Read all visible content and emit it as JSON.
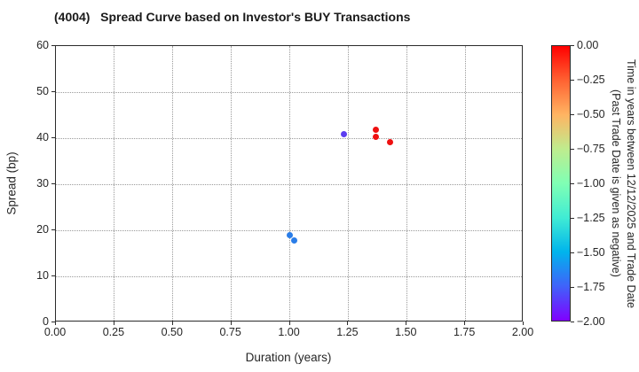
{
  "chart_data": {
    "type": "scatter",
    "title": "(4004)   Spread Curve based on Investor's BUY Transactions",
    "xlabel": "Duration (years)",
    "ylabel": "Spread (bp)",
    "xlim": [
      0.0,
      2.0
    ],
    "ylim": [
      0,
      60
    ],
    "xtick_values": [
      0.0,
      0.25,
      0.5,
      0.75,
      1.0,
      1.25,
      1.5,
      1.75,
      2.0
    ],
    "xtick_labels": [
      "0.00",
      "0.25",
      "0.50",
      "0.75",
      "1.00",
      "1.25",
      "1.50",
      "1.75",
      "2.00"
    ],
    "ytick_values": [
      0,
      10,
      20,
      30,
      40,
      50,
      60
    ],
    "ytick_labels": [
      "0",
      "10",
      "20",
      "30",
      "40",
      "50",
      "60"
    ],
    "grid": true,
    "legend_position": "none",
    "points": [
      {
        "x": 1.0,
        "y": 18.9,
        "time_years": -1.65,
        "color": "#2a7de8"
      },
      {
        "x": 1.02,
        "y": 17.8,
        "time_years": -1.65,
        "color": "#2a7de8"
      },
      {
        "x": 1.23,
        "y": 40.8,
        "time_years": -1.85,
        "color": "#5b3df0"
      },
      {
        "x": 1.37,
        "y": 41.9,
        "time_years": -0.02,
        "color": "#ee1010"
      },
      {
        "x": 1.37,
        "y": 40.2,
        "time_years": -0.02,
        "color": "#ee1010"
      },
      {
        "x": 1.43,
        "y": 39.1,
        "time_years": -0.03,
        "color": "#ee1010"
      }
    ],
    "colorbar": {
      "label_line1": "Time in years between 12/12/2025 and Trade Date",
      "label_line2": "(Past Trade Date is given as negative)",
      "tick_labels": [
        "0.00",
        "−0.25",
        "−0.50",
        "−0.75",
        "−1.00",
        "−1.25",
        "−1.50",
        "−1.75",
        "−2.00"
      ],
      "vmax": 0.0,
      "vmin": -2.0,
      "colormap": "rainbow",
      "gradient_top_to_bottom": [
        "#ff0000",
        "#ff6232",
        "#ffb462",
        "#bfec8e",
        "#80ffb4",
        "#40ecd4",
        "#00b4ec",
        "#4062fa",
        "#8000ff"
      ]
    }
  }
}
